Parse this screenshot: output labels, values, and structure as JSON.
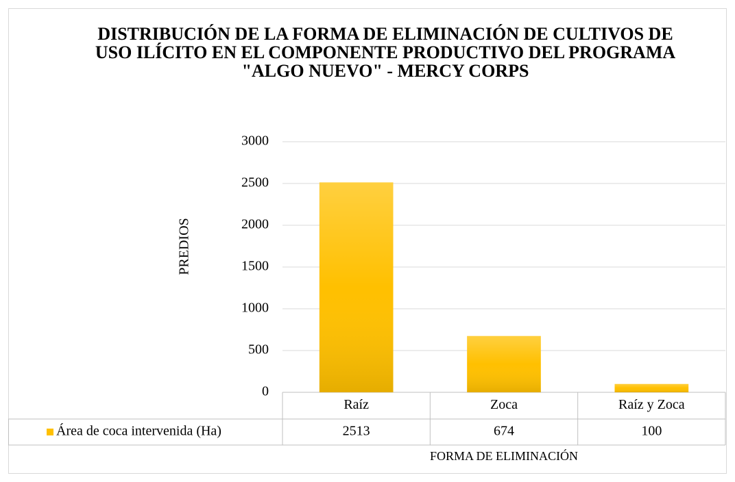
{
  "chart_data": {
    "type": "bar",
    "title": "DISTRIBUCIÓN DE LA FORMA DE ELIMINACIÓN DE CULTIVOS DE USO ILÍCITO EN EL COMPONENTE PRODUCTIVO DEL PROGRAMA \"ALGO NUEVO\" - MERCY CORPS",
    "xlabel": "FORMA DE ELIMINACIÓN",
    "ylabel": "PREDIOS",
    "categories": [
      "Raíz",
      "Zoca",
      "Raíz y Zoca"
    ],
    "series": [
      {
        "name": "Área de coca intervenida (Ha)",
        "color": "#ffc000",
        "values": [
          2513,
          674,
          100
        ]
      }
    ],
    "ylim": [
      0,
      3000
    ],
    "yticks": [
      0,
      500,
      1000,
      1500,
      2000,
      2500,
      3000
    ],
    "grid": true
  }
}
